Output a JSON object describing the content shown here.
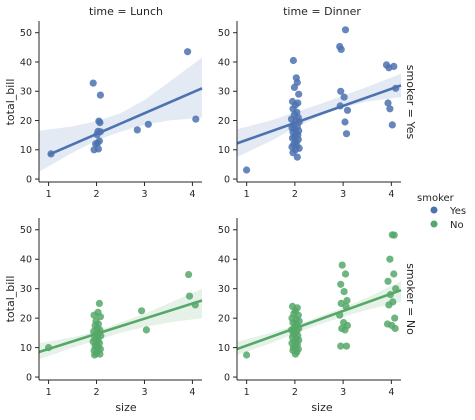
{
  "chart_data": {
    "type": "scatter",
    "subplot_grid": {
      "rows": [
        "Yes",
        "No"
      ],
      "cols": [
        "Lunch",
        "Dinner"
      ]
    },
    "col_titles": [
      "time = Lunch",
      "time = Dinner"
    ],
    "row_titles": [
      "smoker = Yes",
      "smoker = No"
    ],
    "xlabel": "size",
    "ylabel": "total_bill",
    "xlim": [
      0.8,
      4.2
    ],
    "ylim": [
      -1,
      54
    ],
    "xticks": [
      1,
      2,
      3,
      4
    ],
    "yticks": [
      0,
      10,
      20,
      30,
      40,
      50
    ],
    "legend": {
      "title": "smoker",
      "placement": "right",
      "entries": [
        {
          "label": "Yes",
          "color": "#4c72b0"
        },
        {
          "label": "No",
          "color": "#55a868"
        }
      ]
    },
    "panels": [
      {
        "row": "Yes",
        "col": "Lunch",
        "color": "#4c72b0",
        "regression": {
          "x": [
            1,
            4.2
          ],
          "y": [
            8.3,
            31.0
          ]
        },
        "ci_band": {
          "x": [
            0.8,
            1.5,
            2,
            2.5,
            3,
            3.5,
            4.2
          ],
          "lower": [
            2.5,
            9.0,
            13.2,
            16.2,
            18.5,
            20.0,
            21.0
          ],
          "upper": [
            16.5,
            18.0,
            19.8,
            22.5,
            27.0,
            33.0,
            41.5
          ]
        },
        "points": [
          [
            1.05,
            8.6
          ],
          [
            1.93,
            32.8
          ],
          [
            2.08,
            28.7
          ],
          [
            2.05,
            19.8
          ],
          [
            2.07,
            19.3
          ],
          [
            2.03,
            16.3
          ],
          [
            2.08,
            16.2
          ],
          [
            2.01,
            15.2
          ],
          [
            2.06,
            13.0
          ],
          [
            2.02,
            12.3
          ],
          [
            1.98,
            12.0
          ],
          [
            1.95,
            10.0
          ],
          [
            2.04,
            10.3
          ],
          [
            2.85,
            16.8
          ],
          [
            3.08,
            18.7
          ],
          [
            3.9,
            43.5
          ],
          [
            4.07,
            20.5
          ]
        ]
      },
      {
        "row": "Yes",
        "col": "Dinner",
        "color": "#4c72b0",
        "regression": {
          "x": [
            0.8,
            4.2
          ],
          "y": [
            12.2,
            32.0
          ]
        },
        "ci_band": {
          "x": [
            0.8,
            1.5,
            2,
            2.5,
            3,
            3.5,
            4.2
          ],
          "lower": [
            7.5,
            13.0,
            17.5,
            21.5,
            24.5,
            26.5,
            28.0
          ],
          "upper": [
            17.0,
            20.0,
            22.8,
            25.5,
            28.5,
            31.5,
            36.0
          ]
        },
        "points": [
          [
            1.0,
            3.1
          ],
          [
            1.97,
            40.5
          ],
          [
            2.03,
            34.6
          ],
          [
            2.05,
            33.0
          ],
          [
            1.99,
            31.3
          ],
          [
            2.08,
            29.0
          ],
          [
            1.95,
            26.5
          ],
          [
            2.06,
            26.0
          ],
          [
            2.01,
            25.3
          ],
          [
            1.96,
            24.0
          ],
          [
            2.04,
            22.8
          ],
          [
            1.99,
            22.0
          ],
          [
            2.07,
            21.0
          ],
          [
            1.93,
            20.5
          ],
          [
            2.02,
            20.0
          ],
          [
            2.09,
            19.5
          ],
          [
            1.97,
            18.5
          ],
          [
            2.05,
            18.0
          ],
          [
            1.94,
            17.5
          ],
          [
            2.0,
            17.0
          ],
          [
            2.08,
            16.5
          ],
          [
            1.96,
            16.0
          ],
          [
            2.03,
            15.5
          ],
          [
            2.06,
            15.0
          ],
          [
            1.99,
            14.5
          ],
          [
            1.95,
            14.0
          ],
          [
            2.07,
            13.5
          ],
          [
            2.02,
            12.8
          ],
          [
            1.98,
            12.0
          ],
          [
            2.04,
            11.5
          ],
          [
            1.94,
            11.0
          ],
          [
            2.09,
            10.5
          ],
          [
            2.01,
            10.0
          ],
          [
            1.96,
            9.0
          ],
          [
            2.05,
            7.5
          ],
          [
            3.05,
            51.0
          ],
          [
            2.93,
            45.3
          ],
          [
            2.96,
            44.3
          ],
          [
            2.95,
            30.0
          ],
          [
            3.02,
            28.0
          ],
          [
            2.94,
            25.0
          ],
          [
            3.09,
            23.5
          ],
          [
            3.04,
            19.5
          ],
          [
            3.07,
            15.5
          ],
          [
            3.9,
            39.0
          ],
          [
            4.05,
            38.5
          ],
          [
            3.95,
            38.0
          ],
          [
            3.93,
            26.0
          ],
          [
            4.09,
            31.0
          ],
          [
            3.97,
            24.0
          ],
          [
            4.02,
            18.5
          ]
        ]
      },
      {
        "row": "No",
        "col": "Lunch",
        "color": "#55a868",
        "regression": {
          "x": [
            0.8,
            4.2
          ],
          "y": [
            8.5,
            26.0
          ]
        },
        "ci_band": {
          "x": [
            0.8,
            1.5,
            2,
            2.5,
            3,
            3.5,
            4.2
          ],
          "lower": [
            6.0,
            10.0,
            12.5,
            15.0,
            17.0,
            18.5,
            20.0
          ],
          "upper": [
            11.5,
            13.5,
            15.5,
            18.5,
            21.5,
            25.0,
            30.0
          ]
        },
        "points": [
          [
            1.0,
            10.0
          ],
          [
            2.06,
            25.0
          ],
          [
            2.03,
            22.0
          ],
          [
            1.95,
            21.0
          ],
          [
            2.08,
            20.5
          ],
          [
            1.99,
            19.0
          ],
          [
            2.04,
            18.0
          ],
          [
            1.97,
            17.5
          ],
          [
            2.01,
            16.5
          ],
          [
            2.07,
            16.0
          ],
          [
            1.94,
            15.5
          ],
          [
            2.05,
            15.0
          ],
          [
            1.98,
            14.5
          ],
          [
            2.09,
            14.0
          ],
          [
            2.02,
            13.5
          ],
          [
            1.96,
            13.0
          ],
          [
            2.03,
            12.5
          ],
          [
            1.93,
            12.0
          ],
          [
            2.06,
            11.5
          ],
          [
            2.0,
            11.0
          ],
          [
            1.97,
            10.5
          ],
          [
            2.04,
            10.0
          ],
          [
            2.08,
            9.5
          ],
          [
            1.95,
            9.0
          ],
          [
            2.01,
            8.5
          ],
          [
            1.99,
            8.0
          ],
          [
            1.96,
            7.5
          ],
          [
            2.07,
            7.8
          ],
          [
            2.94,
            22.5
          ],
          [
            3.04,
            16.0
          ],
          [
            3.92,
            34.8
          ],
          [
            3.94,
            27.5
          ],
          [
            4.06,
            24.5
          ]
        ]
      },
      {
        "row": "No",
        "col": "Dinner",
        "color": "#55a868",
        "regression": {
          "x": [
            0.8,
            4.2
          ],
          "y": [
            9.5,
            29.5
          ]
        },
        "ci_band": {
          "x": [
            0.8,
            1.5,
            2,
            2.5,
            3,
            3.5,
            4.2
          ],
          "lower": [
            7.5,
            11.5,
            14.8,
            17.8,
            20.5,
            22.8,
            25.5
          ],
          "upper": [
            12.0,
            15.0,
            17.5,
            20.5,
            23.5,
            27.0,
            32.5
          ]
        },
        "points": [
          [
            1.0,
            7.5
          ],
          [
            1.95,
            24.0
          ],
          [
            2.05,
            23.5
          ],
          [
            2.01,
            22.5
          ],
          [
            1.98,
            21.5
          ],
          [
            2.07,
            21.0
          ],
          [
            1.94,
            20.0
          ],
          [
            2.03,
            19.5
          ],
          [
            2.09,
            19.0
          ],
          [
            1.96,
            18.5
          ],
          [
            2.02,
            18.0
          ],
          [
            2.05,
            17.5
          ],
          [
            1.99,
            17.0
          ],
          [
            2.08,
            16.5
          ],
          [
            1.93,
            16.0
          ],
          [
            2.04,
            15.5
          ],
          [
            2.0,
            15.0
          ],
          [
            1.97,
            14.5
          ],
          [
            2.06,
            14.0
          ],
          [
            1.95,
            13.5
          ],
          [
            2.03,
            13.0
          ],
          [
            2.08,
            12.5
          ],
          [
            1.99,
            12.0
          ],
          [
            1.94,
            11.5
          ],
          [
            2.05,
            11.0
          ],
          [
            2.02,
            10.5
          ],
          [
            1.97,
            10.0
          ],
          [
            2.07,
            9.5
          ],
          [
            1.96,
            9.0
          ],
          [
            2.04,
            8.5
          ],
          [
            2.01,
            7.8
          ],
          [
            2.98,
            38.0
          ],
          [
            3.05,
            35.0
          ],
          [
            2.95,
            31.5
          ],
          [
            3.02,
            29.0
          ],
          [
            3.08,
            26.0
          ],
          [
            2.96,
            25.0
          ],
          [
            3.06,
            24.0
          ],
          [
            2.93,
            21.0
          ],
          [
            3.01,
            18.5
          ],
          [
            3.09,
            17.5
          ],
          [
            2.97,
            16.5
          ],
          [
            3.04,
            16.0
          ],
          [
            2.95,
            10.5
          ],
          [
            3.07,
            10.5
          ],
          [
            4.02,
            48.3
          ],
          [
            4.06,
            48.2
          ],
          [
            3.97,
            40.0
          ],
          [
            4.05,
            35.0
          ],
          [
            3.93,
            32.5
          ],
          [
            4.09,
            30.0
          ],
          [
            3.98,
            28.0
          ],
          [
            4.03,
            25.5
          ],
          [
            3.95,
            24.5
          ],
          [
            4.07,
            20.0
          ],
          [
            3.92,
            18.0
          ],
          [
            4.01,
            17.5
          ],
          [
            4.08,
            16.5
          ]
        ]
      }
    ]
  }
}
